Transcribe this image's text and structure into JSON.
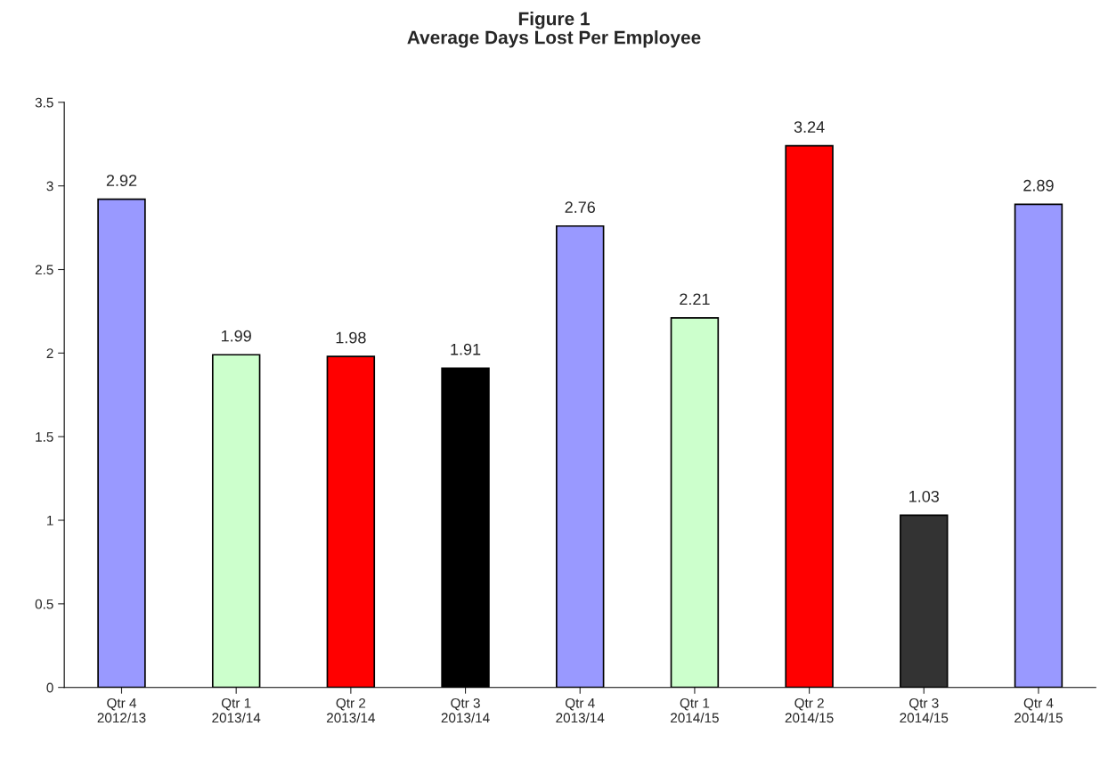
{
  "chart_data": {
    "type": "bar",
    "title": "Figure 1\nAverage Days Lost Per Employee",
    "categories": [
      "Qtr 4\n2012/13",
      "Qtr 1\n2013/14",
      "Qtr 2\n2013/14",
      "Qtr 3\n2013/14",
      "Qtr 4\n2013/14",
      "Qtr 1\n2014/15",
      "Qtr 2\n2014/15",
      "Qtr 3\n2014/15",
      "Qtr 4\n2014/15"
    ],
    "values": [
      2.92,
      1.99,
      1.98,
      1.91,
      2.76,
      2.21,
      3.24,
      1.03,
      2.89
    ],
    "colors": [
      "#9999ff",
      "#ccffcc",
      "#ff0000",
      "#000000",
      "#9999ff",
      "#ccffcc",
      "#ff0000",
      "#333333",
      "#9999ff"
    ],
    "ylim": [
      0,
      3.5
    ],
    "yticks": [
      0,
      0.5,
      1,
      1.5,
      2,
      2.5,
      3,
      3.5
    ],
    "data_labels": true,
    "grid": false,
    "legend": false
  }
}
